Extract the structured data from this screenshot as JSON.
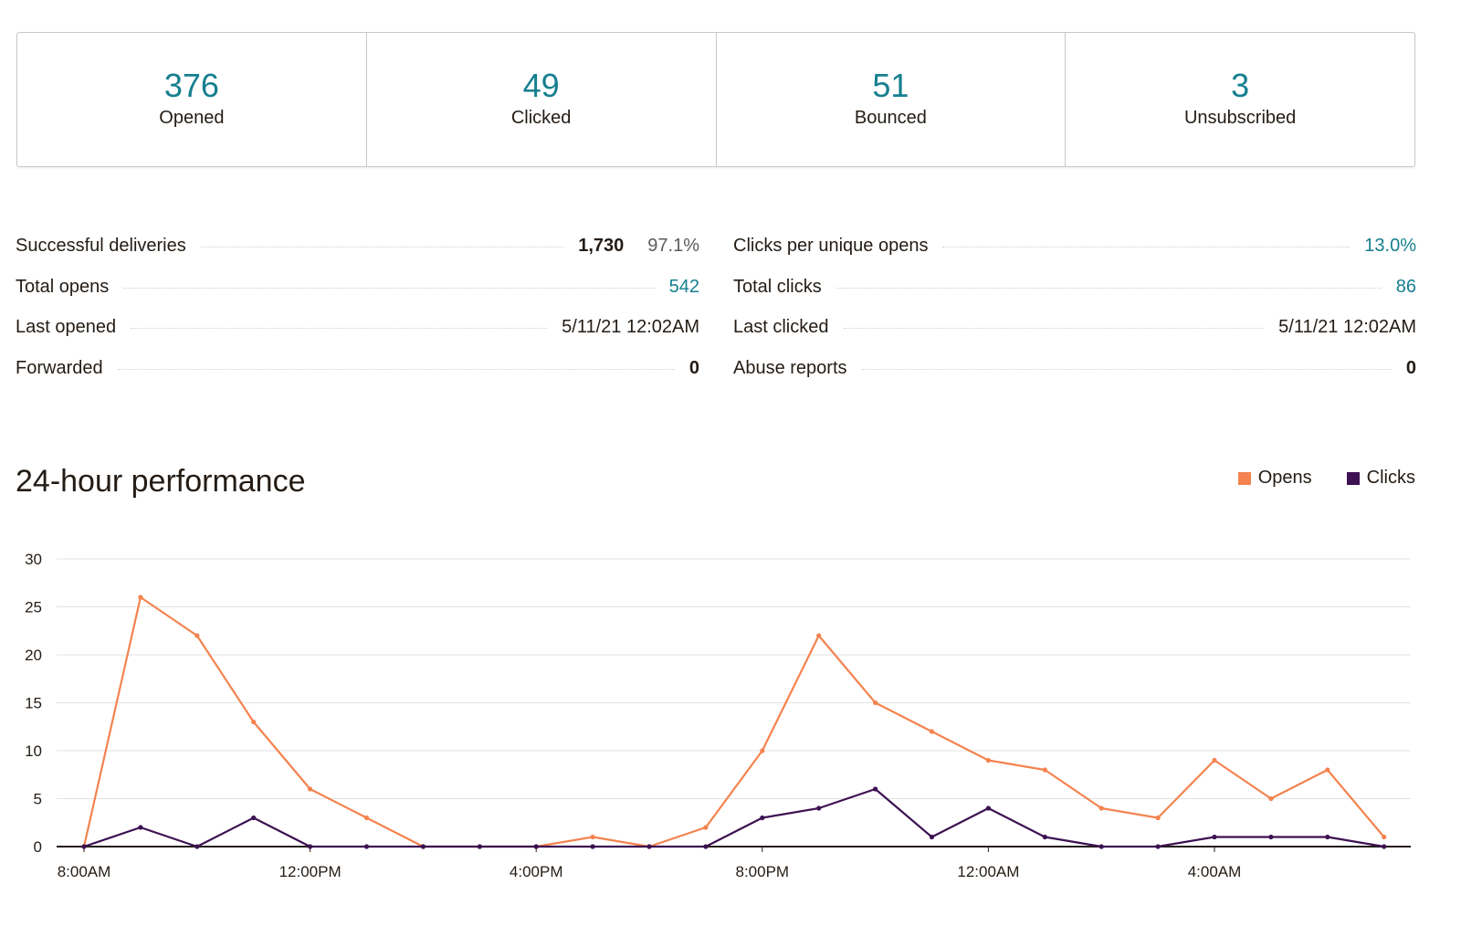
{
  "summary": [
    {
      "value": "376",
      "label": "Opened"
    },
    {
      "value": "49",
      "label": "Clicked"
    },
    {
      "value": "51",
      "label": "Bounced"
    },
    {
      "value": "3",
      "label": "Unsubscribed"
    }
  ],
  "metrics_left": [
    {
      "label": "Successful deliveries",
      "value": "1,730",
      "pct": "97.1%",
      "style": "strong"
    },
    {
      "label": "Total opens",
      "value": "542",
      "style": "link"
    },
    {
      "label": "Last opened",
      "value": "5/11/21 12:02AM",
      "style": "plain"
    },
    {
      "label": "Forwarded",
      "value": "0",
      "style": "strong"
    }
  ],
  "metrics_right": [
    {
      "label": "Clicks per unique opens",
      "value": "13.0%",
      "style": "link"
    },
    {
      "label": "Total clicks",
      "value": "86",
      "style": "link"
    },
    {
      "label": "Last clicked",
      "value": "5/11/21 12:02AM",
      "style": "plain"
    },
    {
      "label": "Abuse reports",
      "value": "0",
      "style": "strong"
    }
  ],
  "chart_section": {
    "title": "24-hour performance",
    "legend": [
      {
        "name": "Opens",
        "color": "#f4834f"
      },
      {
        "name": "Clicks",
        "color": "#3d1152"
      }
    ]
  },
  "colors": {
    "accent": "#157f8f",
    "opens": "#f4834f",
    "clicks": "#3d1152"
  },
  "chart_data": {
    "type": "line",
    "title": "24-hour performance",
    "x": [
      "8:00AM",
      "9:00AM",
      "10:00AM",
      "11:00AM",
      "12:00PM",
      "1:00PM",
      "2:00PM",
      "3:00PM",
      "4:00PM",
      "5:00PM",
      "6:00PM",
      "7:00PM",
      "8:00PM",
      "9:00PM",
      "10:00PM",
      "11:00PM",
      "12:00AM",
      "1:00AM",
      "2:00AM",
      "3:00AM",
      "4:00AM",
      "5:00AM",
      "6:00AM",
      "7:00AM"
    ],
    "x_tick_labels": [
      "8:00AM",
      "12:00PM",
      "4:00PM",
      "8:00PM",
      "12:00AM",
      "4:00AM"
    ],
    "y_ticks": [
      0,
      5,
      10,
      15,
      20,
      25,
      30
    ],
    "ylim": [
      0,
      30
    ],
    "grid": true,
    "legend_position": "top-right",
    "series": [
      {
        "name": "Opens",
        "color": "#f4834f",
        "values": [
          0,
          26,
          22,
          13,
          6,
          3,
          0,
          0,
          0,
          1,
          0,
          2,
          10,
          22,
          15,
          12,
          9,
          8,
          4,
          3,
          9,
          5,
          8,
          1
        ]
      },
      {
        "name": "Clicks",
        "color": "#3d1152",
        "values": [
          0,
          2,
          0,
          3,
          0,
          0,
          0,
          0,
          0,
          0,
          0,
          0,
          3,
          4,
          6,
          1,
          4,
          1,
          0,
          0,
          1,
          1,
          1,
          0
        ]
      }
    ]
  }
}
